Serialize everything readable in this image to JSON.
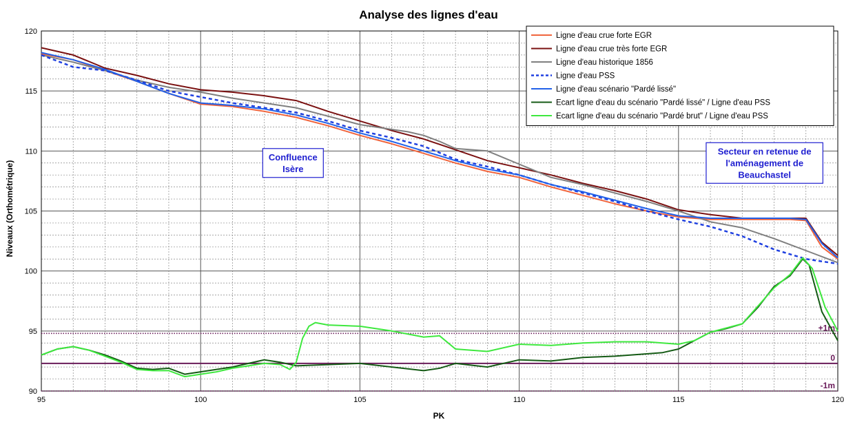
{
  "chart_data": {
    "type": "line",
    "title": "Analyse des lignes d'eau",
    "xlabel": "PK",
    "ylabel": "Niveaux (Orthométrique)",
    "xlim": [
      95,
      120
    ],
    "ylim": [
      90,
      120
    ],
    "xticks": [
      95,
      100,
      105,
      110,
      115,
      120
    ],
    "yticks": [
      90,
      95,
      100,
      105,
      110,
      115,
      120
    ],
    "grid": true,
    "legend_position": "top-right",
    "series": [
      {
        "name": "Ligne d'eau crue forte EGR",
        "color": "#f0643c",
        "dash": false,
        "width": 2,
        "x": [
          95,
          96,
          97,
          98,
          99,
          100,
          101,
          102,
          103,
          104,
          105,
          106,
          107,
          108,
          109,
          110,
          111,
          112,
          113,
          114,
          115,
          116,
          117,
          118,
          118.5,
          119,
          119.5,
          120
        ],
        "y": [
          118.1,
          117.6,
          116.7,
          115.8,
          114.8,
          113.9,
          113.7,
          113.3,
          112.8,
          112.1,
          111.3,
          110.6,
          109.8,
          109.0,
          108.3,
          107.8,
          107.0,
          106.3,
          105.6,
          105.0,
          104.5,
          104.3,
          104.3,
          104.3,
          104.3,
          104.2,
          102.0,
          101.0
        ]
      },
      {
        "name": "Ligne d'eau crue très forte EGR",
        "color": "#7a1010",
        "dash": false,
        "width": 2,
        "x": [
          95,
          96,
          97,
          98,
          99,
          100,
          101,
          102,
          103,
          104,
          105,
          106,
          107,
          108,
          109,
          110,
          111,
          112,
          113,
          114,
          115,
          116,
          117,
          118,
          118.5,
          119,
          119.5,
          120
        ],
        "y": [
          118.6,
          118.0,
          116.9,
          116.3,
          115.6,
          115.1,
          114.9,
          114.6,
          114.2,
          113.3,
          112.5,
          111.7,
          111.0,
          110.1,
          109.2,
          108.6,
          108.0,
          107.3,
          106.7,
          106.0,
          105.1,
          104.7,
          104.4,
          104.4,
          104.4,
          104.4,
          102.4,
          101.3
        ]
      },
      {
        "name": "Ligne d'eau historique 1856",
        "color": "#7f7f7f",
        "dash": false,
        "width": 2,
        "x": [
          95,
          96,
          97,
          98,
          99,
          100,
          101,
          102,
          103,
          104,
          105,
          106,
          106.5,
          107,
          107.5,
          108,
          109,
          110,
          111,
          112,
          113,
          114,
          115,
          116,
          117,
          118,
          119,
          120
        ],
        "y": [
          118.0,
          117.4,
          116.7,
          115.9,
          115.3,
          114.9,
          114.4,
          114.0,
          113.6,
          112.9,
          112.2,
          111.8,
          111.6,
          111.3,
          110.8,
          110.2,
          110.0,
          108.9,
          107.8,
          107.2,
          106.5,
          105.8,
          105.0,
          104.1,
          103.6,
          102.7,
          101.7,
          100.7
        ]
      },
      {
        "name": "Ligne d'eau PSS",
        "color": "#1e3fe0",
        "dash": true,
        "width": 2.5,
        "x": [
          95,
          96,
          97,
          98,
          99,
          100,
          101,
          102,
          103,
          104,
          105,
          106,
          107,
          108,
          109,
          110,
          111,
          112,
          113,
          114,
          115,
          116,
          117,
          118,
          119,
          120
        ],
        "y": [
          118.0,
          117.0,
          116.7,
          115.9,
          115.0,
          114.5,
          114.0,
          113.6,
          113.2,
          112.5,
          111.7,
          111.1,
          110.4,
          109.3,
          108.7,
          108.0,
          107.2,
          106.5,
          105.8,
          105.0,
          104.3,
          103.7,
          102.9,
          101.8,
          101.0,
          100.6
        ]
      },
      {
        "name": "Ligne d'eau scénario \"Pardé lissé\"",
        "color": "#2060e8",
        "dash": false,
        "width": 2,
        "x": [
          95,
          96,
          97,
          98,
          99,
          100,
          101,
          102,
          103,
          104,
          105,
          106,
          107,
          108,
          109,
          110,
          111,
          112,
          113,
          114,
          115,
          116,
          117,
          118,
          118.5,
          119,
          119.5,
          120
        ],
        "y": [
          118.2,
          117.6,
          116.8,
          115.8,
          114.8,
          114.0,
          113.8,
          113.5,
          113.0,
          112.3,
          111.5,
          110.8,
          110.0,
          109.2,
          108.5,
          108.0,
          107.2,
          106.6,
          105.9,
          105.2,
          104.6,
          104.4,
          104.4,
          104.4,
          104.4,
          104.3,
          102.3,
          101.1
        ]
      },
      {
        "name": "Ecart ligne d'eau du scénario \"Pardé lissé\" / Ligne d'eau PSS",
        "color": "#145a14",
        "dash": false,
        "width": 2,
        "x": [
          95,
          95.5,
          96,
          96.5,
          97,
          97.5,
          98,
          98.5,
          99,
          99.5,
          100,
          100.5,
          101,
          101.5,
          102,
          102.5,
          103,
          104,
          105,
          106,
          107,
          107.5,
          108,
          109,
          110,
          111,
          112,
          113,
          114,
          114.5,
          115,
          115.5,
          116,
          116.5,
          117,
          117.5,
          118,
          118.5,
          118.9,
          119.1,
          119.5,
          120
        ],
        "y": [
          93.0,
          93.5,
          93.7,
          93.4,
          93.0,
          92.5,
          91.9,
          91.8,
          91.9,
          91.4,
          91.6,
          91.8,
          92.0,
          92.3,
          92.6,
          92.4,
          92.1,
          92.2,
          92.3,
          92.0,
          91.7,
          91.9,
          92.3,
          92.0,
          92.6,
          92.5,
          92.8,
          92.9,
          93.1,
          93.2,
          93.5,
          94.2,
          94.9,
          95.2,
          95.6,
          97.0,
          98.7,
          99.6,
          101.0,
          100.5,
          96.6,
          94.2
        ]
      },
      {
        "name": "Ecart ligne d'eau du scénario \"Pardé brut\" / Ligne d'eau PSS",
        "color": "#3ee83e",
        "dash": false,
        "width": 2,
        "x": [
          95,
          95.5,
          96,
          96.5,
          97,
          97.5,
          98,
          98.5,
          99,
          99.5,
          100,
          100.5,
          101,
          101.5,
          102,
          102.5,
          102.8,
          103.0,
          103.2,
          103.4,
          103.6,
          103.8,
          104,
          105,
          106,
          107,
          107.5,
          108,
          109,
          110,
          111,
          112,
          113,
          114,
          115,
          115.5,
          116,
          117,
          118,
          118.5,
          118.9,
          119.2,
          119.6,
          120
        ],
        "y": [
          93.0,
          93.5,
          93.7,
          93.4,
          92.9,
          92.4,
          91.8,
          91.7,
          91.7,
          91.2,
          91.4,
          91.6,
          91.9,
          92.1,
          92.3,
          92.2,
          91.8,
          92.4,
          94.4,
          95.4,
          95.7,
          95.6,
          95.5,
          95.4,
          95.0,
          94.5,
          94.6,
          93.5,
          93.3,
          93.9,
          93.8,
          94.0,
          94.1,
          94.1,
          93.9,
          94.2,
          94.9,
          95.6,
          98.6,
          99.7,
          101.1,
          100.2,
          97.0,
          95.0
        ]
      }
    ],
    "reference_lines": [
      {
        "label": "+1m",
        "y": 94.8,
        "color": "#6a1b5a",
        "style": "dotted"
      },
      {
        "label": "0",
        "y": 92.3,
        "color": "#6a1b5a",
        "style": "solid"
      },
      {
        "label": "-1m",
        "y": 90.0,
        "color": "#6a1b5a",
        "style": "dotted"
      }
    ],
    "annotations": [
      {
        "lines": [
          "Confluence",
          "Isère"
        ],
        "x": 102.9,
        "y": 109.0
      },
      {
        "lines": [
          "Secteur en retenue de",
          "l'aménagement de",
          "Beauchastel"
        ],
        "x": 117.7,
        "y": 109.0
      }
    ]
  }
}
